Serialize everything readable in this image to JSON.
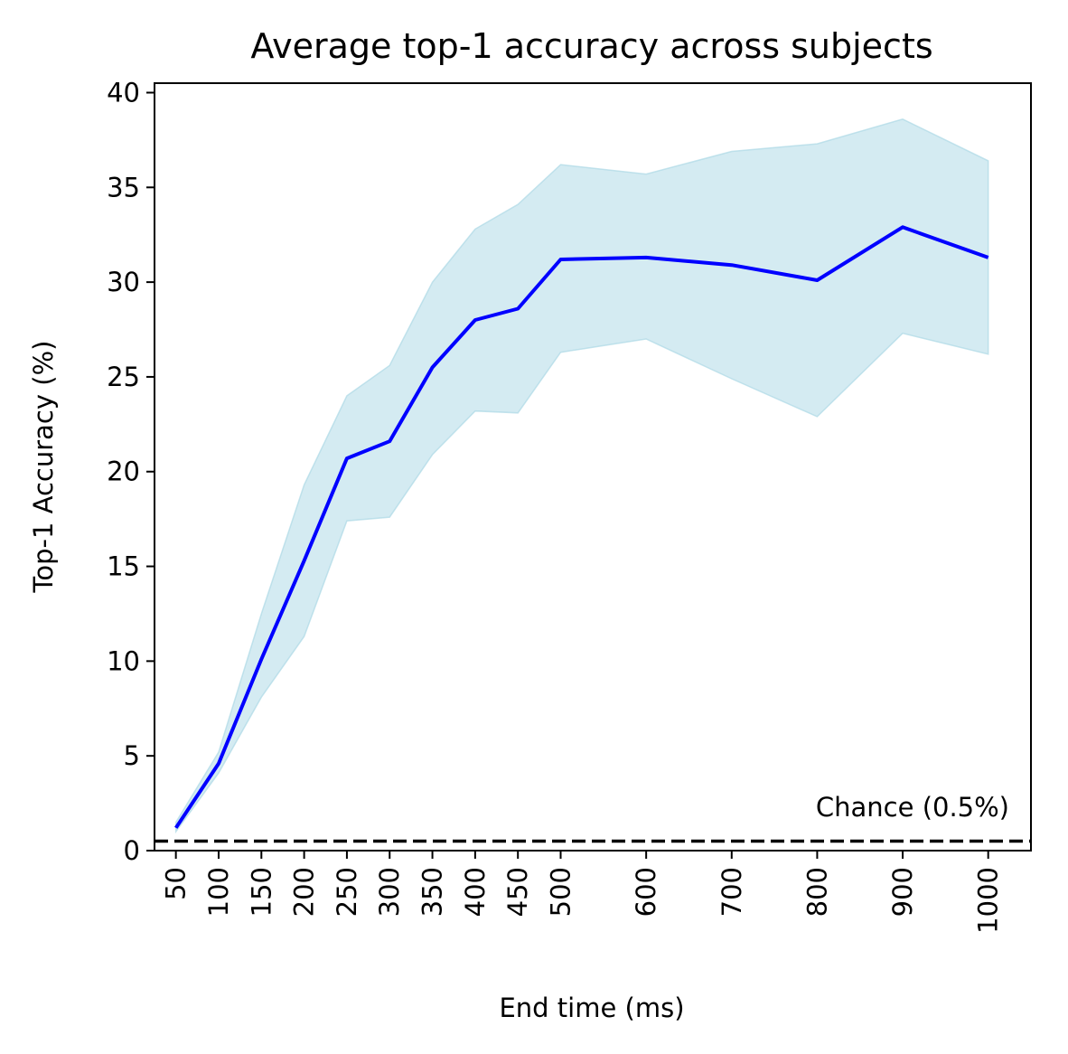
{
  "chart_data": {
    "type": "line",
    "title": "Average top-1 accuracy across subjects",
    "xlabel": "End time (ms)",
    "ylabel": "Top-1 Accuracy (%)",
    "xlim": [
      25,
      1050
    ],
    "ylim": [
      0,
      40.5
    ],
    "x_ticks": [
      50,
      100,
      150,
      200,
      250,
      300,
      350,
      400,
      450,
      500,
      600,
      700,
      800,
      900,
      1000
    ],
    "y_ticks": [
      0,
      5,
      10,
      15,
      20,
      25,
      30,
      35,
      40
    ],
    "grid": false,
    "x": [
      50,
      100,
      150,
      200,
      250,
      300,
      350,
      400,
      450,
      500,
      600,
      700,
      800,
      900,
      1000
    ],
    "series": [
      {
        "values": [
          1.2,
          4.6,
          10.1,
          15.3,
          20.7,
          21.6,
          25.5,
          28.0,
          28.6,
          31.2,
          31.3,
          30.9,
          30.1,
          32.9,
          31.3
        ],
        "lower": [
          1.0,
          4.1,
          8.1,
          11.3,
          17.4,
          17.6,
          20.9,
          23.2,
          23.1,
          26.3,
          27.0,
          24.9,
          22.9,
          27.3,
          26.2
        ],
        "upper": [
          1.5,
          5.2,
          12.5,
          19.3,
          24.0,
          25.6,
          30.0,
          32.8,
          34.1,
          36.2,
          35.7,
          36.9,
          37.3,
          38.6,
          36.4
        ],
        "color": "#0000ff",
        "band_color": "#add8e6"
      }
    ],
    "annotations": [
      {
        "text": "Chance (0.5%)",
        "y": 0.5,
        "style": "dashed",
        "color": "#000000"
      }
    ]
  }
}
